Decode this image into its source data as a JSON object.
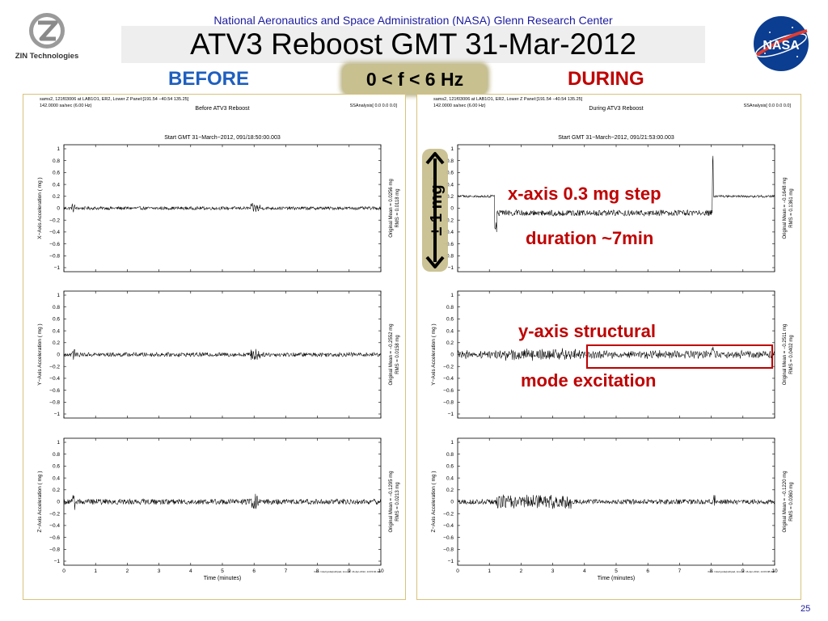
{
  "header": {
    "org_line": "National Aeronautics and Space Administration (NASA) Glenn Research Center",
    "title": "ATV3 Reboost GMT 31-Mar-2012",
    "zin_name": "ZIN Technologies",
    "nasa_logo_text": "NASA"
  },
  "labels": {
    "before": "BEFORE",
    "freq": "0 < f < 6 Hz",
    "during": "DURING",
    "scale": "± 1 mg"
  },
  "annotations": {
    "x_line1": "x-axis 0.3 mg step",
    "x_line2": "duration ~7min",
    "y_line1": "y-axis structural",
    "y_line2": "mode excitation"
  },
  "page_number": "25",
  "colors": {
    "title_blue": "#1a1a9e",
    "before_blue": "#1f5fbf",
    "during_red": "#c00000",
    "frame_gold": "#d9c27a",
    "freq_bg": "#c8c08f"
  },
  "chart_data": [
    {
      "type": "line",
      "panel": "before",
      "header_left_1": "sams2, 121f03006 at LAB1O1, ER2, Lower Z Panel:[191.54 −40.54 135.25]",
      "header_left_2": "142.0000 sa/sec (6.00 Hz)",
      "header_right": "SSAnalysis[ 0.0  0.0  0.0]",
      "title": "Before ATV3 Reboost",
      "subtitle": "Start GMT 31−March−2012, 091/18:50:00.003",
      "xlabel": "Time (minutes)",
      "xlim": [
        0,
        10
      ],
      "x_ticks": [
        "0",
        "1",
        "2",
        "3",
        "4",
        "5",
        "6",
        "7",
        "8",
        "9",
        "10"
      ],
      "y_ticks": [
        "1",
        "0.8",
        "0.6",
        "0.4",
        "0.2",
        "0",
        "−0.2",
        "−0.4",
        "−0.6",
        "−0.8",
        "−1"
      ],
      "footnote": "from: /misc/yoda/pub/pad, tmcook, 16-Apr-2012, 14:03:02.431",
      "series": [
        {
          "ylabel": "X−Axis Acceleration ( mg )",
          "ylim": [
            -1,
            1
          ],
          "mean_text": "Original Mean = 0.0256 mg",
          "rms_text": "RMS = 0.0118 mg",
          "noise": 0.012
        },
        {
          "ylabel": "Y−Axis Acceleration ( mg )",
          "ylim": [
            -1,
            1
          ],
          "mean_text": "Original Mean = −0.2552 mg",
          "rms_text": "RMS = 0.0158 mg",
          "noise": 0.016
        },
        {
          "ylabel": "Z−Axis Acceleration ( mg )",
          "ylim": [
            -1,
            1
          ],
          "mean_text": "Original Mean = −0.1295 mg",
          "rms_text": "RMS = 0.0213 mg",
          "noise": 0.021
        }
      ]
    },
    {
      "type": "line",
      "panel": "during",
      "header_left_1": "sams2, 121f03006 at LAB1O1, ER2, Lower Z Panel:[191.54 −40.54 135.25]",
      "header_left_2": "142.0000 sa/sec (6.00 Hz)",
      "header_right": "SSAnalysis[ 0.0  0.0  0.0]",
      "title": "During ATV3 Reboost",
      "subtitle": "Start GMT 31−March−2012, 091/21:53:00.003",
      "xlabel": "Time (minutes)",
      "xlim": [
        0,
        10
      ],
      "x_ticks": [
        "0",
        "1",
        "2",
        "3",
        "4",
        "5",
        "6",
        "7",
        "8",
        "9",
        "10"
      ],
      "y_ticks": [
        "1",
        "0.8",
        "0.6",
        "0.4",
        "0.2",
        "0",
        "−0.2",
        "−0.4",
        "−0.6",
        "−0.8",
        "−1"
      ],
      "footnote": "from: /misc/yoda/pub/pad, tmcook, 16-Apr-2012, 14:03:08.298",
      "series": [
        {
          "ylabel": "X−Axis Acceleration ( mg )",
          "ylim": [
            -1,
            1
          ],
          "mean_text": "Original Mean = −0.1648 mg",
          "rms_text": "RMS = 0.1361 mg",
          "baseline": 0.2,
          "step_start": 1.2,
          "step_end": 8.05,
          "step_level": -0.08,
          "noise": 0.02
        },
        {
          "ylabel": "Y−Axis Acceleration ( mg )",
          "ylim": [
            -1,
            1
          ],
          "mean_text": "Original Mean = −0.2511 mg",
          "rms_text": "RMS = 0.0402 mg",
          "noise": 0.04
        },
        {
          "ylabel": "Z−Axis Acceleration ( mg )",
          "ylim": [
            -1,
            1
          ],
          "mean_text": "Original Mean = −0.1220 mg",
          "rms_text": "RMS = 0.0360 mg",
          "noise": 0.036
        }
      ]
    }
  ]
}
